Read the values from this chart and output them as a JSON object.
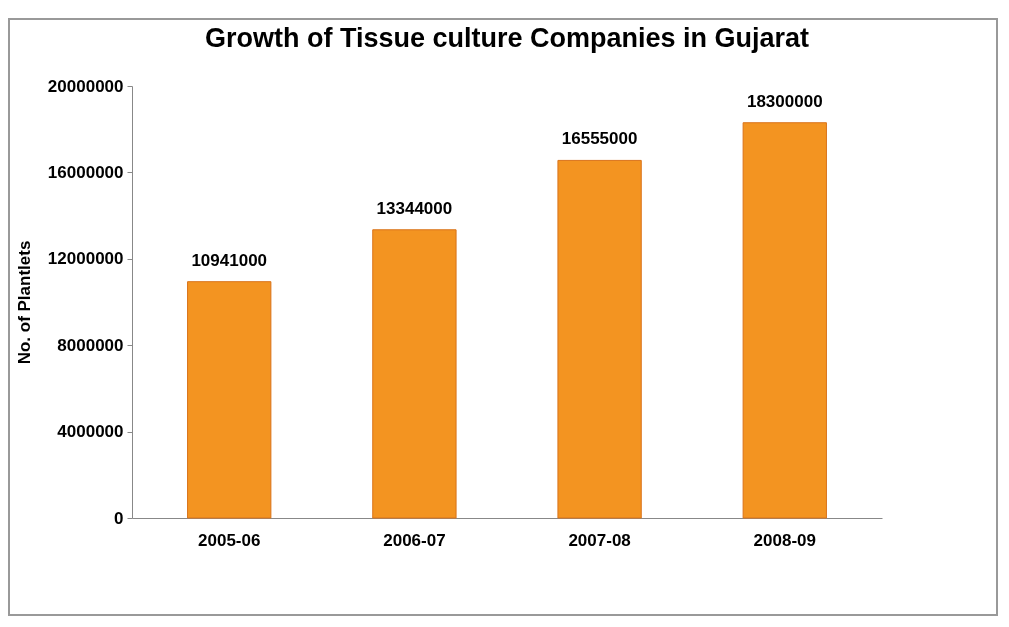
{
  "chart_data": {
    "type": "bar",
    "title": "Growth of Tissue culture Companies in Gujarat",
    "ylabel": "No. of Plantlets",
    "categories": [
      "2005-06",
      "2006-07",
      "2007-08",
      "2008-09"
    ],
    "values": [
      10941000,
      13344000,
      16555000,
      18300000
    ],
    "color": "#f39421",
    "ylim": [
      0,
      20000000
    ],
    "yticks": [
      0,
      4000000,
      8000000,
      12000000,
      16000000,
      20000000
    ],
    "data_labels": true,
    "grid": false
  }
}
